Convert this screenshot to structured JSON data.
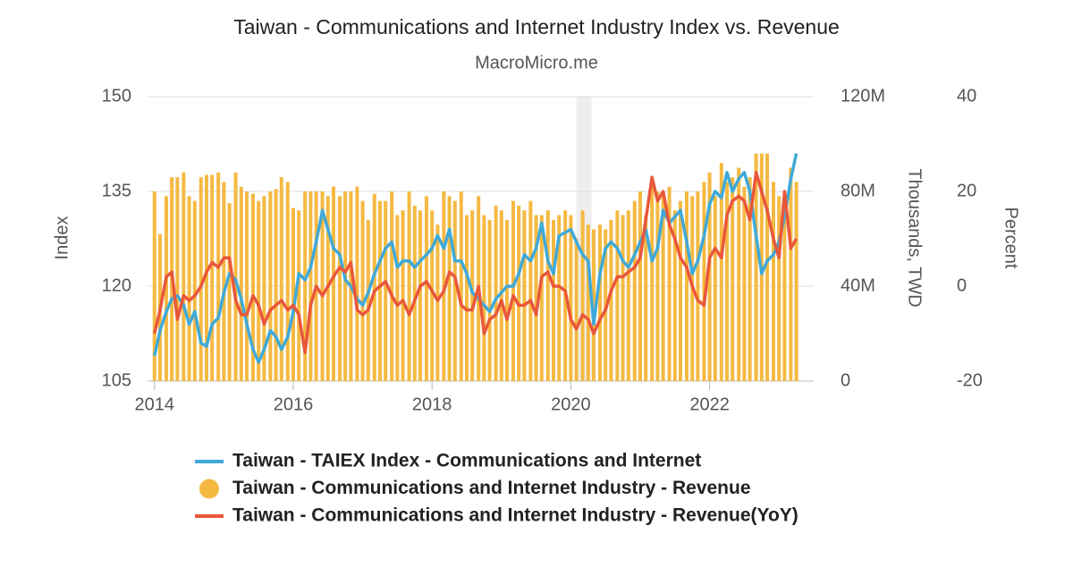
{
  "chart_data": {
    "type": "combo",
    "title": "Taiwan - Communications and Internet Industry Index vs. Revenue",
    "subtitle": "MacroMicro.me",
    "y_label": "Index",
    "y2_label": "Thousands, TWD",
    "y3_label": "Percent",
    "x": [
      2014,
      2014.08,
      2014.17,
      2014.25,
      2014.33,
      2014.42,
      2014.5,
      2014.58,
      2014.67,
      2014.75,
      2014.83,
      2014.92,
      2015,
      2015.08,
      2015.17,
      2015.25,
      2015.33,
      2015.42,
      2015.5,
      2015.58,
      2015.67,
      2015.75,
      2015.83,
      2015.92,
      2016,
      2016.08,
      2016.17,
      2016.25,
      2016.33,
      2016.42,
      2016.5,
      2016.58,
      2016.67,
      2016.75,
      2016.83,
      2016.92,
      2017,
      2017.08,
      2017.17,
      2017.25,
      2017.33,
      2017.42,
      2017.5,
      2017.58,
      2017.67,
      2017.75,
      2017.83,
      2017.92,
      2018,
      2018.08,
      2018.17,
      2018.25,
      2018.33,
      2018.42,
      2018.5,
      2018.58,
      2018.67,
      2018.75,
      2018.83,
      2018.92,
      2019,
      2019.08,
      2019.17,
      2019.25,
      2019.33,
      2019.42,
      2019.5,
      2019.58,
      2019.67,
      2019.75,
      2019.83,
      2019.92,
      2020,
      2020.08,
      2020.17,
      2020.25,
      2020.33,
      2020.42,
      2020.5,
      2020.58,
      2020.67,
      2020.75,
      2020.83,
      2020.92,
      2021,
      2021.08,
      2021.17,
      2021.25,
      2021.33,
      2021.42,
      2021.5,
      2021.58,
      2021.67,
      2021.75,
      2021.83,
      2021.92,
      2022,
      2022.08,
      2022.17,
      2022.25,
      2022.33,
      2022.42,
      2022.5,
      2022.58,
      2022.67,
      2022.75,
      2022.83,
      2022.92,
      2023,
      2023.08,
      2023.17,
      2023.25
    ],
    "xlim": [
      2013.9,
      2023.5
    ],
    "xticks": [
      2014,
      2016,
      2018,
      2020,
      2022
    ],
    "ylim": [
      105,
      150
    ],
    "yticks": [
      150,
      135,
      120,
      105
    ],
    "y2lim": [
      0,
      120000000
    ],
    "y2ticks": [
      {
        "value": 120000000,
        "label": "120M"
      },
      {
        "value": 80000000,
        "label": "80M"
      },
      {
        "value": 40000000,
        "label": "40M"
      },
      0
    ],
    "y3lim": [
      -20,
      40
    ],
    "y3ticks": [
      40,
      20,
      0,
      -20
    ],
    "shaded_range": [
      2020.08,
      2020.3
    ],
    "grid": true,
    "series": [
      {
        "name": "Taiwan - TAIEX Index - Communications and Internet",
        "type": "line",
        "axis": "y",
        "color": "#3fa9d9",
        "values": [
          109,
          113,
          116,
          118,
          118.5,
          117,
          114,
          116,
          111,
          110.5,
          114,
          115,
          119,
          122,
          121,
          118,
          114,
          110,
          108,
          110,
          113,
          112,
          110,
          112,
          116,
          122,
          121,
          123,
          127,
          132,
          129,
          126,
          125,
          121,
          120,
          118,
          117,
          119,
          122,
          124,
          126,
          127,
          123,
          124,
          124,
          123,
          124,
          125,
          126,
          128,
          126,
          129,
          124,
          124,
          122,
          119,
          118,
          117,
          116,
          118,
          119,
          120,
          120,
          122,
          125,
          124,
          126,
          130,
          124,
          122,
          128,
          128.5,
          129,
          127,
          125,
          124,
          114,
          122,
          126,
          127,
          126,
          124,
          123,
          125,
          127,
          129,
          124,
          126,
          132,
          130,
          131,
          132,
          127,
          122,
          124,
          128,
          133,
          135,
          134,
          138,
          135,
          137,
          138,
          135,
          128,
          122,
          124,
          125,
          127,
          131,
          137,
          141
        ]
      },
      {
        "name": "Taiwan - Communications and Internet Industry - Revenue",
        "type": "bar",
        "axis": "y2",
        "color": "#f5b942",
        "values": [
          80000000,
          62000000,
          78000000,
          86000000,
          86000000,
          88000000,
          78000000,
          76000000,
          86000000,
          87000000,
          87000000,
          88000000,
          84000000,
          75000000,
          88000000,
          82000000,
          80000000,
          79000000,
          76000000,
          78000000,
          80000000,
          81000000,
          86000000,
          84000000,
          73000000,
          72000000,
          80000000,
          80000000,
          80000000,
          80000000,
          78000000,
          82000000,
          78000000,
          80000000,
          80000000,
          82000000,
          76000000,
          68000000,
          79000000,
          76000000,
          76000000,
          80000000,
          70000000,
          72000000,
          80000000,
          74000000,
          72000000,
          78000000,
          72000000,
          66000000,
          80000000,
          78000000,
          76000000,
          80000000,
          70000000,
          72000000,
          78000000,
          70000000,
          68000000,
          74000000,
          72000000,
          68000000,
          76000000,
          74000000,
          72000000,
          76000000,
          70000000,
          70000000,
          72000000,
          68000000,
          70000000,
          72000000,
          70000000,
          60000000,
          72000000,
          66000000,
          64000000,
          66000000,
          64000000,
          68000000,
          72000000,
          70000000,
          72000000,
          76000000,
          80000000,
          70000000,
          86000000,
          80000000,
          78000000,
          82000000,
          72000000,
          76000000,
          80000000,
          78000000,
          80000000,
          84000000,
          88000000,
          78000000,
          92000000,
          84000000,
          86000000,
          90000000,
          82000000,
          86000000,
          96000000,
          96000000,
          96000000,
          84000000,
          78000000,
          72000000,
          90000000,
          84000000
        ]
      },
      {
        "name": "Taiwan - Communications and Internet Industry - Revenue(YoY)",
        "type": "line",
        "axis": "y3",
        "color": "#e9573a",
        "values": [
          -10,
          -5,
          2,
          3,
          -7,
          -2,
          -3,
          -2,
          0,
          3,
          5,
          4,
          6,
          6,
          -3,
          -6,
          -6,
          -2,
          -4,
          -8,
          -5,
          -4,
          -3,
          -5,
          -4,
          -6,
          -14,
          -4,
          0,
          -2,
          0,
          2,
          4,
          3,
          5,
          -5,
          -6,
          -5,
          -1,
          0,
          1,
          -2,
          -4,
          -3,
          -6,
          -3,
          0,
          1,
          -1,
          -3,
          -1,
          3,
          2,
          -4,
          -5,
          -5,
          0,
          -10,
          -7,
          -6,
          -3,
          -7,
          -2,
          -4,
          -4,
          -3,
          -6,
          2,
          3,
          0,
          0,
          -1,
          -7,
          -9,
          -6,
          -7,
          -10,
          -7,
          -5,
          -1,
          2,
          2,
          3,
          4,
          6,
          14,
          23,
          18,
          20,
          13,
          10,
          6,
          4,
          0,
          -3,
          -4,
          6,
          8,
          6,
          15,
          18,
          19,
          18,
          14,
          24,
          20,
          16,
          10,
          6,
          20,
          8,
          10
        ]
      }
    ]
  }
}
